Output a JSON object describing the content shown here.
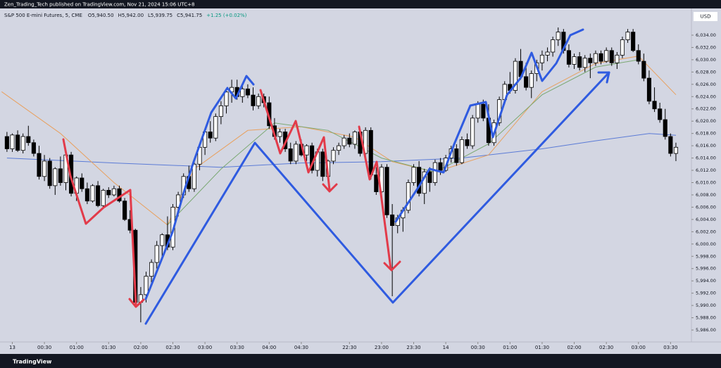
{
  "header": {
    "published": "Zen_Trading_Tech published on TradingView.com, Nov 21, 2024 15:06 UTC+8",
    "brand": "TradingView"
  },
  "chart_data": {
    "type": "candlestick",
    "title": "S&P 500 E-mini Futures, 5, CME",
    "legend_values": [
      "O5,940.50",
      "H5,942.00",
      "L5,939.75",
      "C5,941.75",
      "+1.25 (+0.02%)"
    ],
    "currency": "USD",
    "up_color": "#ffffff",
    "down_color": "#000000",
    "open": [
      6017.5,
      6015.5,
      6017.75,
      6015.25,
      6017.5,
      6016.5,
      6014.75,
      6011.0,
      6013.5,
      6009.5,
      6012.25,
      6010.0,
      6014.5,
      6008.25,
      6010.75,
      6009.0,
      6007.0,
      6009.5,
      6006.25,
      6008.75,
      6008.0,
      6009.0,
      6007.0,
      6004.0,
      6002.25,
      5990.5,
      5991.75,
      5994.75,
      5997.0,
      5999.75,
      6001.5,
      5999.5,
      6006.0,
      6008.0,
      6011.0,
      6009.0,
      6013.0,
      6015.75,
      6018.25,
      6017.25,
      6020.75,
      6022.5,
      6024.75,
      6025.5,
      6024.0,
      6025.25,
      6024.25,
      6022.5,
      6024.0,
      6023.0,
      6019.25,
      6017.5,
      6018.25,
      6015.5,
      6013.5,
      6016.25,
      6014.5,
      6016.0,
      6012.0,
      6015.0,
      6011.0,
      6013.5,
      6015.25,
      6016.0,
      6017.25,
      6016.25,
      6018.25,
      6014.75,
      6018.5,
      6011.25,
      6008.5,
      6012.5,
      6004.75,
      6003.0,
      6004.25,
      6005.5,
      6010.0,
      6012.5,
      6008.25,
      6011.75,
      6010.0,
      6013.25,
      6012.0,
      6014.0,
      6015.5,
      6013.25,
      6017.0,
      6016.0,
      6020.5,
      6022.75,
      6020.5,
      6016.5,
      6019.75,
      6023.5,
      6026.0,
      6025.0,
      6029.75,
      6027.25,
      6025.5,
      6027.75,
      6029.5,
      6030.75,
      6031.25,
      6033.25,
      6034.5,
      6031.5,
      6029.25,
      6030.5,
      6028.75,
      6030.25,
      6029.5,
      6031.0,
      6029.75,
      6031.5,
      6029.5,
      6030.75,
      6033.25,
      6034.5,
      6031.5,
      6029.75,
      6027.0,
      6023.25,
      6022.0,
      6020.25,
      6017.5,
      6014.75
    ],
    "high": [
      6018.25,
      6018.0,
      6018.5,
      6018.0,
      6019.25,
      6017.0,
      6016.0,
      6014.5,
      6014.0,
      6012.5,
      6014.25,
      6015.0,
      6015.0,
      6011.0,
      6011.5,
      6010.0,
      6009.75,
      6010.25,
      6009.0,
      6009.25,
      6009.5,
      6009.5,
      6007.5,
      6005.5,
      6002.5,
      5993.0,
      5995.5,
      5997.5,
      6000.5,
      6001.75,
      6004.5,
      6006.5,
      6008.5,
      6011.5,
      6012.75,
      6013.5,
      6016.25,
      6018.75,
      6020.0,
      6021.25,
      6023.25,
      6025.25,
      6026.75,
      6026.75,
      6025.75,
      6026.0,
      6025.5,
      6024.5,
      6024.5,
      6024.0,
      6020.5,
      6018.75,
      6018.75,
      6016.5,
      6016.75,
      6017.0,
      6016.25,
      6016.5,
      6015.5,
      6015.5,
      6013.75,
      6015.75,
      6016.5,
      6017.75,
      6018.0,
      6018.5,
      6018.75,
      6019.0,
      6019.0,
      6012.5,
      6013.0,
      6013.0,
      6006.5,
      6004.75,
      6006.0,
      6010.5,
      6013.0,
      6013.5,
      6012.25,
      6012.5,
      6013.75,
      6014.0,
      6014.5,
      6016.0,
      6016.25,
      6017.5,
      6018.0,
      6021.0,
      6023.25,
      6023.5,
      6022.75,
      6020.25,
      6024.0,
      6026.5,
      6028.0,
      6030.25,
      6031.75,
      6029.5,
      6028.25,
      6030.0,
      6031.5,
      6032.0,
      6033.75,
      6035.25,
      6035.0,
      6032.5,
      6031.0,
      6031.25,
      6030.75,
      6031.0,
      6031.5,
      6031.5,
      6032.0,
      6032.0,
      6031.25,
      6033.75,
      6035.0,
      6035.0,
      6032.5,
      6031.0,
      6028.25,
      6025.5,
      6023.0,
      6022.0,
      6018.0,
      6016.5
    ],
    "low": [
      6015.0,
      6015.0,
      6015.0,
      6014.75,
      6016.0,
      6014.25,
      6010.5,
      6010.25,
      6009.0,
      6008.0,
      6009.5,
      6008.75,
      6007.75,
      6007.0,
      6008.5,
      6006.5,
      6006.75,
      6006.0,
      6005.75,
      6007.5,
      6007.75,
      6006.75,
      6003.75,
      6001.75,
      5989.75,
      5987.25,
      5990.5,
      5993.75,
      5996.0,
      5998.0,
      5999.0,
      5999.0,
      6004.5,
      6007.5,
      6008.5,
      6008.5,
      6012.0,
      6014.5,
      6016.5,
      6016.75,
      6019.5,
      6021.25,
      6023.0,
      6023.5,
      6023.0,
      6023.75,
      6021.75,
      6022.0,
      6022.25,
      6018.75,
      6017.0,
      6016.5,
      6015.0,
      6013.0,
      6013.0,
      6014.25,
      6013.5,
      6011.5,
      6011.0,
      6010.25,
      6010.5,
      6013.0,
      6014.5,
      6015.5,
      6015.75,
      6015.5,
      6014.25,
      6014.0,
      6010.5,
      6008.0,
      6007.5,
      6004.25,
      5991.5,
      6001.75,
      6002.0,
      6005.0,
      6009.5,
      6007.75,
      6006.5,
      6008.5,
      6009.5,
      6011.25,
      6011.75,
      6013.25,
      6012.75,
      6013.0,
      6015.5,
      6015.5,
      6019.75,
      6020.0,
      6016.0,
      6016.0,
      6019.25,
      6022.75,
      6024.5,
      6024.5,
      6026.75,
      6025.0,
      6023.75,
      6026.5,
      6028.25,
      6029.75,
      6030.5,
      6032.25,
      6031.0,
      6028.75,
      6028.5,
      6028.25,
      6028.0,
      6027.0,
      6029.0,
      6029.25,
      6029.5,
      6029.0,
      6028.5,
      6030.25,
      6032.75,
      6031.25,
      6029.25,
      6026.5,
      6022.75,
      6021.5,
      6019.75,
      6017.0,
      6014.25,
      6013.5
    ],
    "close": [
      6015.5,
      6017.75,
      6015.25,
      6017.5,
      6016.5,
      6014.75,
      6011.0,
      6013.5,
      6009.5,
      6012.25,
      6010.0,
      6014.5,
      6008.25,
      6010.75,
      6009.0,
      6007.0,
      6009.5,
      6006.25,
      6008.75,
      6008.0,
      6009.0,
      6007.0,
      6004.0,
      6002.25,
      5990.5,
      5991.75,
      5994.75,
      5997.0,
      5999.75,
      6001.5,
      5999.5,
      6006.0,
      6008.0,
      6011.0,
      6009.0,
      6013.0,
      6015.75,
      6018.25,
      6017.25,
      6020.75,
      6022.5,
      6024.75,
      6025.5,
      6024.0,
      6025.25,
      6024.25,
      6022.5,
      6024.0,
      6023.0,
      6019.25,
      6017.5,
      6018.25,
      6015.5,
      6013.5,
      6016.25,
      6014.5,
      6016.0,
      6012.0,
      6015.0,
      6011.0,
      6013.5,
      6015.25,
      6016.0,
      6017.25,
      6016.25,
      6018.25,
      6014.75,
      6018.5,
      6011.25,
      6008.5,
      6012.5,
      6004.75,
      6003.0,
      6004.25,
      6005.5,
      6010.0,
      6012.5,
      6008.25,
      6011.75,
      6010.0,
      6013.25,
      6012.0,
      6014.0,
      6015.5,
      6013.25,
      6017.0,
      6016.0,
      6020.5,
      6022.75,
      6020.5,
      6016.5,
      6019.75,
      6023.5,
      6026.0,
      6025.0,
      6029.75,
      6027.25,
      6025.5,
      6027.75,
      6029.5,
      6030.75,
      6031.25,
      6033.25,
      6034.5,
      6031.5,
      6029.25,
      6030.5,
      6028.75,
      6030.25,
      6029.5,
      6031.0,
      6029.75,
      6031.5,
      6029.5,
      6030.75,
      6033.25,
      6034.5,
      6031.5,
      6029.75,
      6027.0,
      6023.25,
      6022.0,
      6020.25,
      6017.5,
      6014.75,
      6015.75
    ],
    "indicators": [
      {
        "color": "#5b7bd6",
        "x": [
          0,
          20,
          40,
          55,
          70,
          85,
          100,
          110,
          120,
          125
        ],
        "values": [
          6014.0,
          6013.2,
          6012.5,
          6013.2,
          6013.4,
          6014.0,
          6015.5,
          6016.8,
          6018.0,
          6017.7
        ]
      },
      {
        "color": "#e8a160",
        "x": [
          -1,
          10,
          20,
          30,
          35,
          45,
          55,
          65,
          72,
          80,
          90,
          100,
          110,
          118,
          125
        ],
        "values": [
          6024.8,
          6018.0,
          6010.0,
          6003.1,
          6012.2,
          6018.5,
          6019.1,
          6017.4,
          6013.4,
          6011.7,
          6014.5,
          6024.8,
          6029.4,
          6030.6,
          6024.3
        ]
      },
      {
        "color": "#7aa872",
        "x": [
          30,
          40,
          50,
          60,
          70,
          80,
          90,
          100,
          110,
          118
        ],
        "values": [
          6003.1,
          6012.2,
          6019.7,
          6018.5,
          6014.0,
          6011.7,
          6016.3,
          6024.3,
          6028.8,
          6030.0
        ]
      }
    ],
    "xlim": [
      -1.3,
      127.9
    ],
    "xticks": [
      {
        "value": 1,
        "label": "13"
      },
      {
        "value": 7,
        "label": "00:30"
      },
      {
        "value": 13,
        "label": "01:00"
      },
      {
        "value": 19,
        "label": "01:30"
      },
      {
        "value": 25,
        "label": "02:00"
      },
      {
        "value": 31,
        "label": "02:30"
      },
      {
        "value": 37,
        "label": "03:00"
      },
      {
        "value": 43,
        "label": "03:30"
      },
      {
        "value": 49,
        "label": "04:00"
      },
      {
        "value": 55,
        "label": "04:30"
      },
      {
        "value": 64,
        "label": "22:30"
      },
      {
        "value": 70,
        "label": "23:00"
      },
      {
        "value": 76,
        "label": "23:30"
      },
      {
        "value": 82,
        "label": "14"
      },
      {
        "value": 88,
        "label": "00:30"
      },
      {
        "value": 94,
        "label": "01:00"
      },
      {
        "value": 100,
        "label": "01:30"
      },
      {
        "value": 106,
        "label": "02:00"
      },
      {
        "value": 112,
        "label": "02:30"
      },
      {
        "value": 118,
        "label": "03:00"
      },
      {
        "value": 124,
        "label": "03:30"
      }
    ],
    "ylim": [
      5984.17,
      6038.35
    ],
    "yticks": [
      {
        "value": 5986,
        "label": "5,986.00"
      },
      {
        "value": 5988,
        "label": "5,988.00"
      },
      {
        "value": 5990,
        "label": "5,990.00"
      },
      {
        "value": 5992,
        "label": "5,992.00"
      },
      {
        "value": 5994,
        "label": "5,994.00"
      },
      {
        "value": 5996,
        "label": "5,996.00"
      },
      {
        "value": 5998,
        "label": "5,998.00"
      },
      {
        "value": 6000,
        "label": "6,000.00"
      },
      {
        "value": 6002,
        "label": "6,002.00"
      },
      {
        "value": 6004,
        "label": "6,004.00"
      },
      {
        "value": 6006,
        "label": "6,006.00"
      },
      {
        "value": 6008,
        "label": "6,008.00"
      },
      {
        "value": 6010,
        "label": "6,010.00"
      },
      {
        "value": 6012,
        "label": "6,012.00"
      },
      {
        "value": 6014,
        "label": "6,014.00"
      },
      {
        "value": 6016,
        "label": "6,016.00"
      },
      {
        "value": 6018,
        "label": "6,018.00"
      },
      {
        "value": 6020,
        "label": "6,020.00"
      },
      {
        "value": 6022,
        "label": "6,022.00"
      },
      {
        "value": 6024,
        "label": "6,024.00"
      },
      {
        "value": 6026,
        "label": "6,026.00"
      },
      {
        "value": 6028,
        "label": "6,028.00"
      },
      {
        "value": 6030,
        "label": "6,030.00"
      },
      {
        "value": 6032,
        "label": "6,032.00"
      },
      {
        "value": 6034,
        "label": "6,034.00"
      }
    ],
    "grid": false
  }
}
